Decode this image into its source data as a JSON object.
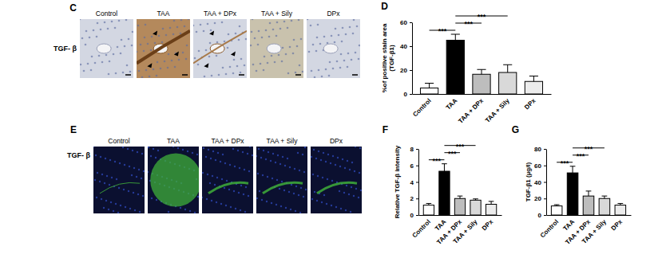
{
  "image_panels": [
    {
      "panel": "C",
      "row_label": "TGF- β",
      "columns": [
        "Control",
        "TAA",
        "TAA + DPx",
        "TAA + Sily",
        "DPx"
      ]
    },
    {
      "panel": "E",
      "row_label": "TGF- β",
      "columns": [
        "Control",
        "TAA",
        "TAA + DPx",
        "TAA + Sily",
        "DPx"
      ]
    }
  ],
  "chart_data": [
    {
      "type": "bar",
      "panel": "D",
      "ylabel": [
        "%of positive stain area",
        "(TGF-β1)"
      ],
      "categories": [
        "Control",
        "TAA",
        "TAA + DPx",
        "TAA + Sily",
        "DPx"
      ],
      "values": [
        5,
        45,
        16.5,
        18,
        10.5
      ],
      "errors": [
        4,
        5,
        4,
        6.5,
        4.5
      ],
      "colors": [
        "#ffffff",
        "#000000",
        "#bdbdbd",
        "#d9d9d9",
        "#ececec"
      ],
      "ylim": [
        0,
        60
      ],
      "yticks": [
        0,
        20,
        40,
        60
      ],
      "significance": [
        {
          "groups": [
            "Control",
            "TAA"
          ],
          "label": "***"
        },
        {
          "groups": [
            "TAA",
            "TAA + DPx"
          ],
          "label": "***"
        },
        {
          "groups": [
            "TAA",
            "TAA + Sily"
          ],
          "label": "***"
        }
      ]
    },
    {
      "type": "bar",
      "panel": "F",
      "ylabel": [
        "Relative TGF-β intensity"
      ],
      "categories": [
        "Control",
        "TAA",
        "TAA + DPx",
        "TAA + Sily",
        "DPx"
      ],
      "values": [
        1.2,
        5.3,
        2.0,
        1.8,
        1.3
      ],
      "errors": [
        0.2,
        0.9,
        0.3,
        0.15,
        0.35
      ],
      "colors": [
        "#ffffff",
        "#000000",
        "#bdbdbd",
        "#d9d9d9",
        "#ececec"
      ],
      "ylim": [
        0,
        8
      ],
      "yticks": [
        0,
        2,
        4,
        6,
        8
      ],
      "significance": [
        {
          "groups": [
            "Control",
            "TAA"
          ],
          "label": "***"
        },
        {
          "groups": [
            "TAA",
            "TAA + DPx"
          ],
          "label": "***"
        },
        {
          "groups": [
            "TAA",
            "TAA + Sily"
          ],
          "label": "***"
        }
      ]
    },
    {
      "type": "bar",
      "panel": "G",
      "ylabel": [
        "TGF-β1 (µg/l)"
      ],
      "categories": [
        "Control",
        "TAA",
        "TAA + DPx",
        "TAA + Sily",
        "DPx"
      ],
      "values": [
        11,
        51,
        23,
        20,
        12
      ],
      "errors": [
        1.5,
        8,
        6,
        3,
        2
      ],
      "colors": [
        "#ffffff",
        "#000000",
        "#bdbdbd",
        "#d9d9d9",
        "#ececec"
      ],
      "ylim": [
        0,
        80
      ],
      "yticks": [
        0,
        20,
        40,
        60,
        80
      ],
      "significance": [
        {
          "groups": [
            "Control",
            "TAA"
          ],
          "label": "***"
        },
        {
          "groups": [
            "TAA",
            "TAA + DPx"
          ],
          "label": "***"
        },
        {
          "groups": [
            "TAA",
            "TAA + Sily"
          ],
          "label": "***"
        }
      ]
    }
  ]
}
